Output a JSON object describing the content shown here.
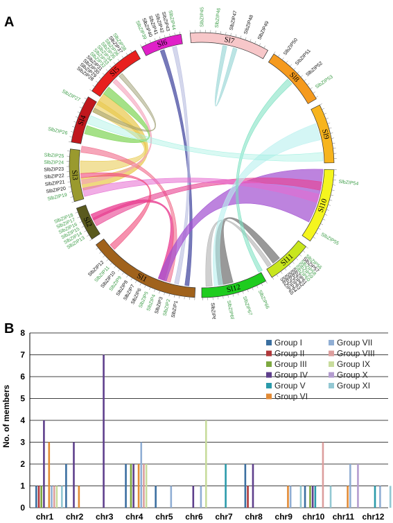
{
  "panel_a": {
    "label": "A",
    "chromosomes": [
      {
        "name": "Sl1",
        "color": "#a0621c",
        "labels": [
          {
            "t": "SlbZIP1",
            "c": "black"
          },
          {
            "t": "SlbZIP2",
            "c": "green"
          },
          {
            "t": "SlbZIP3",
            "c": "black"
          },
          {
            "t": "SlbZIP4",
            "c": "green"
          },
          {
            "t": "SlbZIP5",
            "c": "green"
          },
          {
            "t": "SlbZIP6",
            "c": "black"
          },
          {
            "t": "SlbZIP7",
            "c": "black"
          },
          {
            "t": "SlbZIP8",
            "c": "black"
          },
          {
            "t": "SlbZIP9",
            "c": "green"
          },
          {
            "t": "SlbZIP10",
            "c": "black"
          },
          {
            "t": "SlbZIP11",
            "c": "green"
          },
          {
            "t": "SlbZIP12",
            "c": "black"
          }
        ]
      },
      {
        "name": "Sl2",
        "color": "#5a5a1e",
        "labels": [
          {
            "t": "SlbZIP13",
            "c": "green"
          },
          {
            "t": "SlbZIP14",
            "c": "green"
          },
          {
            "t": "SlbZIP15",
            "c": "green"
          },
          {
            "t": "SlbZIP16",
            "c": "green"
          },
          {
            "t": "SlbZIP17",
            "c": "green"
          },
          {
            "t": "SlbZIP18",
            "c": "green"
          }
        ]
      },
      {
        "name": "Sl3",
        "color": "#9a9a2e",
        "labels": [
          {
            "t": "SlbZIP19",
            "c": "green"
          },
          {
            "t": "SlbZIP20",
            "c": "black"
          },
          {
            "t": "SlbZIP21",
            "c": "black"
          },
          {
            "t": "SlbZIP22",
            "c": "black"
          },
          {
            "t": "SlbZIP23",
            "c": "black"
          },
          {
            "t": "SlbZIP24",
            "c": "green"
          },
          {
            "t": "SlbZIP25",
            "c": "green"
          }
        ]
      },
      {
        "name": "Sl4",
        "color": "#c0171d",
        "labels": [
          {
            "t": "SlbZIP26",
            "c": "green"
          },
          {
            "t": "SlbZIP27",
            "c": "green"
          }
        ]
      },
      {
        "name": "Sl5",
        "color": "#e8201e",
        "labels": [
          {
            "t": "SlbZIP28",
            "c": "black"
          },
          {
            "t": "SlbZIP29",
            "c": "black"
          },
          {
            "t": "SlbZIP30",
            "c": "black"
          },
          {
            "t": "SlbZIP31",
            "c": "black"
          },
          {
            "t": "SlbZIP32",
            "c": "green"
          },
          {
            "t": "SlbZIP33",
            "c": "green"
          },
          {
            "t": "SlbZIP34",
            "c": "green"
          },
          {
            "t": "SlbZIP35",
            "c": "green"
          },
          {
            "t": "SlbZIP36",
            "c": "green"
          },
          {
            "t": "SlbZIP37",
            "c": "black"
          },
          {
            "t": "SlbZIP38",
            "c": "green"
          }
        ]
      },
      {
        "name": "Sl6",
        "color": "#e020c8",
        "labels": [
          {
            "t": "SlbZIP39",
            "c": "green"
          },
          {
            "t": "SlbZIP40",
            "c": "black"
          },
          {
            "t": "SlbZIP41",
            "c": "black"
          },
          {
            "t": "SlbZIP42",
            "c": "black"
          },
          {
            "t": "SlbZIP43",
            "c": "black"
          },
          {
            "t": "SlbZIP44",
            "c": "green"
          }
        ]
      },
      {
        "name": "Sl7",
        "color": "#f7c7c9",
        "labels": [
          {
            "t": "SlbZIP45",
            "c": "green"
          },
          {
            "t": "SlbZIP46",
            "c": "green"
          },
          {
            "t": "SlbZIP47",
            "c": "black"
          },
          {
            "t": "SlbZIP48",
            "c": "black"
          },
          {
            "t": "SlbZIP49",
            "c": "black"
          }
        ]
      },
      {
        "name": "Sl8",
        "color": "#f59a1e",
        "labels": [
          {
            "t": "SlbZIP50",
            "c": "black"
          },
          {
            "t": "SlbZIP51",
            "c": "black"
          },
          {
            "t": "SlbZIP52",
            "c": "black"
          },
          {
            "t": "SlbZIP53",
            "c": "green"
          }
        ]
      },
      {
        "name": "Sl9",
        "color": "#f7b41e",
        "labels": []
      },
      {
        "name": "Sl10",
        "color": "#f5f51e",
        "labels": [
          {
            "t": "SlbZIP54",
            "c": "green"
          },
          {
            "t": "SlbZIP55",
            "c": "green"
          }
        ]
      },
      {
        "name": "Sl11",
        "color": "#c8e61e",
        "labels": [
          {
            "t": "SlbZIP56",
            "c": "green"
          },
          {
            "t": "SlbZIP57",
            "c": "black"
          },
          {
            "t": "SlbZIP58",
            "c": "green"
          },
          {
            "t": "SlbZIP59",
            "c": "green"
          },
          {
            "t": "SlbZIP60",
            "c": "green"
          },
          {
            "t": "SlbZIP61",
            "c": "black"
          },
          {
            "t": "SlbZIP62",
            "c": "black"
          },
          {
            "t": "SlbZIP63",
            "c": "black"
          },
          {
            "t": "SlbZIP64",
            "c": "black"
          },
          {
            "t": "SlbZIP65",
            "c": "black"
          }
        ]
      },
      {
        "name": "Sl12",
        "color": "#1ecc1e",
        "labels": [
          {
            "t": "SlbZIP66",
            "c": "green"
          },
          {
            "t": "SlbZIP67",
            "c": "green"
          },
          {
            "t": "SlbZIP68",
            "c": "green"
          },
          {
            "t": "SlbZIP69",
            "c": "black"
          }
        ]
      }
    ],
    "colors": {
      "green_label": "#3f9e4a",
      "black_label": "#111111"
    }
  },
  "chart_data": {
    "label": "B",
    "type": "bar",
    "ylabel": "No. of members",
    "ylim": [
      0,
      8
    ],
    "yticks": [
      0,
      1,
      2,
      3,
      4,
      5,
      6,
      7,
      8
    ],
    "grid": "horizontal",
    "legend_position": "top-right",
    "categories": [
      "chr1",
      "chr2",
      "chr3",
      "chr4",
      "chr5",
      "chr6",
      "chr7",
      "chr8",
      "chr9",
      "chr10",
      "chr11",
      "chr12"
    ],
    "series": [
      {
        "name": "Group I",
        "color": "#3b6fa0",
        "values": [
          1,
          2,
          0,
          2,
          1,
          0,
          0,
          2,
          0,
          1,
          0,
          0
        ]
      },
      {
        "name": "Group II",
        "color": "#b0383a",
        "values": [
          1,
          0,
          0,
          0,
          0,
          0,
          0,
          1,
          0,
          0,
          0,
          0
        ]
      },
      {
        "name": "Group III",
        "color": "#7da840",
        "values": [
          1,
          0,
          0,
          2,
          0,
          0,
          0,
          0,
          0,
          1,
          0,
          0
        ]
      },
      {
        "name": "Group IV",
        "color": "#5e3f8c",
        "values": [
          4,
          3,
          7,
          2,
          0,
          1,
          0,
          2,
          0,
          1,
          0,
          0
        ]
      },
      {
        "name": "Group V",
        "color": "#2a9aaa",
        "values": [
          0,
          0,
          0,
          0,
          0,
          0,
          2,
          0,
          0,
          1,
          0,
          1
        ]
      },
      {
        "name": "Group VI",
        "color": "#e28a35",
        "values": [
          3,
          1,
          0,
          2,
          0,
          0,
          0,
          0,
          1,
          0,
          1,
          0
        ]
      },
      {
        "name": "Group VII",
        "color": "#90aed4",
        "values": [
          1,
          0,
          0,
          3,
          1,
          1,
          0,
          0,
          1,
          0,
          2,
          1
        ]
      },
      {
        "name": "Group VIII",
        "color": "#dc9e9d",
        "values": [
          1,
          0,
          0,
          2,
          0,
          0,
          0,
          0,
          0,
          3,
          0,
          0
        ]
      },
      {
        "name": "Group IX",
        "color": "#c8dc9c",
        "values": [
          1,
          0,
          0,
          2,
          0,
          4,
          0,
          0,
          0,
          0,
          0,
          0
        ]
      },
      {
        "name": "Group X",
        "color": "#b39ccf",
        "values": [
          0,
          0,
          0,
          0,
          0,
          0,
          0,
          0,
          0,
          0,
          2,
          0
        ]
      },
      {
        "name": "Group XI",
        "color": "#93c8d3",
        "values": [
          1,
          0,
          0,
          0,
          0,
          0,
          0,
          0,
          1,
          1,
          0,
          1
        ]
      }
    ]
  }
}
